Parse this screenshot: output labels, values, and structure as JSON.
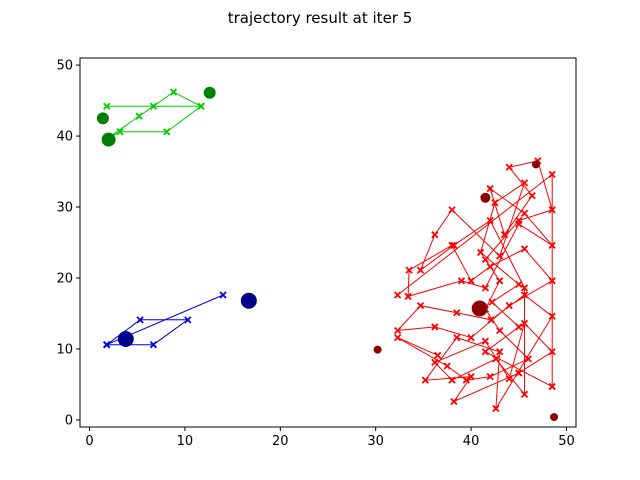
{
  "chart_data": {
    "type": "scatter",
    "title": "trajectory result at iter 5",
    "xlim": [
      -1,
      51
    ],
    "ylim": [
      -1,
      51
    ],
    "x_ticks": [
      0,
      10,
      20,
      30,
      40,
      50
    ],
    "y_ticks": [
      0,
      10,
      20,
      30,
      40,
      50
    ],
    "grid": false,
    "series": [
      {
        "color": "#00cc00",
        "marker": "x",
        "style": "line",
        "path": [
          [
            1.8,
            44.2
          ],
          [
            11.7,
            44.2
          ],
          [
            8.8,
            46.2
          ],
          [
            1.8,
            39.6
          ],
          [
            3.2,
            40.6
          ],
          [
            8.1,
            40.6
          ],
          [
            11.7,
            44.2
          ],
          [
            6.7,
            44.2
          ],
          [
            5.2,
            42.8
          ],
          [
            1.8,
            39.6
          ]
        ]
      },
      {
        "color": "#008000",
        "marker": "o",
        "style": "points",
        "points": [
          [
            1.4,
            42.5,
            6
          ],
          [
            2.0,
            39.5,
            7
          ],
          [
            12.6,
            46.1,
            6
          ]
        ]
      },
      {
        "color": "#0000dd",
        "marker": "x",
        "style": "line",
        "path": [
          [
            1.8,
            10.6
          ],
          [
            5.3,
            14.1
          ],
          [
            10.3,
            14.1
          ],
          [
            6.7,
            10.6
          ],
          [
            1.8,
            10.6
          ],
          [
            14.0,
            17.6
          ]
        ]
      },
      {
        "color": "#00008b",
        "marker": "o",
        "style": "points",
        "points": [
          [
            3.8,
            11.4,
            8
          ],
          [
            16.7,
            16.8,
            8
          ]
        ]
      },
      {
        "color": "#ff0000",
        "marker": "x",
        "style": "line",
        "path": [
          [
            32.3,
            17.6
          ],
          [
            48.5,
            34.6
          ],
          [
            48.5,
            4.7
          ],
          [
            41.5,
            9.6
          ],
          [
            45.0,
            13.1
          ],
          [
            42.2,
            16.6
          ],
          [
            45.0,
            19.1
          ],
          [
            41.0,
            23.6
          ],
          [
            42.5,
            30.6
          ],
          [
            45.6,
            33.4
          ],
          [
            43.0,
            23.1
          ],
          [
            38.0,
            29.6
          ],
          [
            36.2,
            26.1
          ],
          [
            34.7,
            21.1
          ],
          [
            38.2,
            24.6
          ],
          [
            42.0,
            28.1
          ],
          [
            45.6,
            18.6
          ],
          [
            45.6,
            3.6
          ],
          [
            42.6,
            8.6
          ],
          [
            38.0,
            5.6
          ],
          [
            36.2,
            8.1
          ],
          [
            41.5,
            11.1
          ],
          [
            44.0,
            5.8
          ],
          [
            45.6,
            13.6
          ],
          [
            48.5,
            9.6
          ],
          [
            45.0,
            6.6
          ],
          [
            38.2,
            2.6
          ],
          [
            40.0,
            6.1
          ],
          [
            35.2,
            5.6
          ],
          [
            38.5,
            11.6
          ],
          [
            43.0,
            9.6
          ],
          [
            42.6,
            1.6
          ],
          [
            48.5,
            14.6
          ],
          [
            45.6,
            17.6
          ],
          [
            42.1,
            14.1
          ],
          [
            38.5,
            15.1
          ],
          [
            34.7,
            16.1
          ],
          [
            32.3,
            12.6
          ],
          [
            36.2,
            13.1
          ],
          [
            40.0,
            11.6
          ],
          [
            44.0,
            16.1
          ],
          [
            48.5,
            19.6
          ],
          [
            45.6,
            24.1
          ],
          [
            42.0,
            21.6
          ],
          [
            40.0,
            19.6
          ],
          [
            38.0,
            24.6
          ],
          [
            33.5,
            21.1
          ],
          [
            33.4,
            17.4
          ],
          [
            39.0,
            19.6
          ],
          [
            41.5,
            18.6
          ],
          [
            45.0,
            27.6
          ],
          [
            48.5,
            24.6
          ],
          [
            45.6,
            29.1
          ],
          [
            42.0,
            32.6
          ],
          [
            43.5,
            26.1
          ],
          [
            46.4,
            31.6
          ],
          [
            44.0,
            35.6
          ],
          [
            47.0,
            36.5
          ],
          [
            48.5,
            29.6
          ],
          [
            45.0,
            28.1
          ],
          [
            41.5,
            22.6
          ],
          [
            43.0,
            19.6
          ],
          [
            41.5,
            15.6
          ],
          [
            43.0,
            12.6
          ],
          [
            46.0,
            8.6
          ],
          [
            42.0,
            6.1
          ],
          [
            39.5,
            5.6
          ],
          [
            37.5,
            7.6
          ],
          [
            32.3,
            11.6
          ],
          [
            36.5,
            9.1
          ]
        ]
      },
      {
        "color": "#8b0000",
        "marker": "o",
        "style": "points",
        "points": [
          [
            30.2,
            9.9,
            4
          ],
          [
            48.7,
            0.4,
            4
          ],
          [
            41.5,
            31.3,
            5
          ],
          [
            40.9,
            15.7,
            8
          ],
          [
            46.8,
            36.0,
            4
          ]
        ]
      }
    ]
  }
}
